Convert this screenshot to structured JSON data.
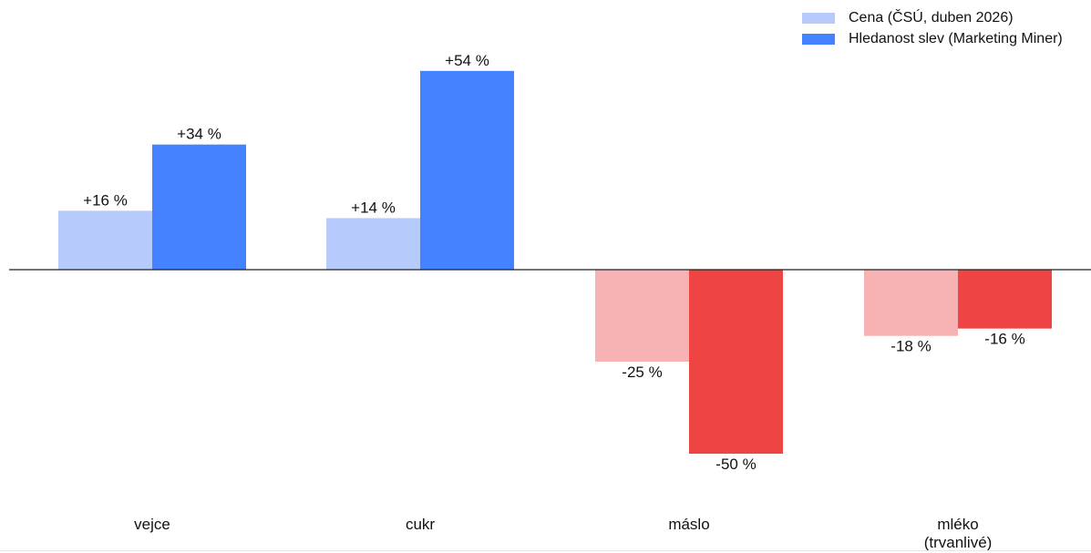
{
  "chart_data": {
    "type": "bar",
    "categories": [
      "vejce",
      "cukr",
      "máslo",
      "mléko\n(trvanlivé)"
    ],
    "series": [
      {
        "name": "Cena (ČSÚ, duben 2026)",
        "values": [
          16,
          14,
          -25,
          -18
        ],
        "labels": [
          "+16 %",
          "+14 %",
          "-25 %",
          "-18 %"
        ],
        "color_positive": "#b6cbfb",
        "color_negative": "#f7b3b3"
      },
      {
        "name": "Hledanost slev (Marketing Miner)",
        "values": [
          34,
          54,
          -50,
          -16
        ],
        "labels": [
          "+34 %",
          "+54 %",
          "-50 %",
          "-16 %"
        ],
        "color_positive": "#4582ff",
        "color_negative": "#ef4444"
      }
    ],
    "ylim": [
      -60,
      60
    ],
    "grid": false,
    "legend": "top-right",
    "legend_colors": [
      "#b6cbfb",
      "#4582ff"
    ]
  }
}
